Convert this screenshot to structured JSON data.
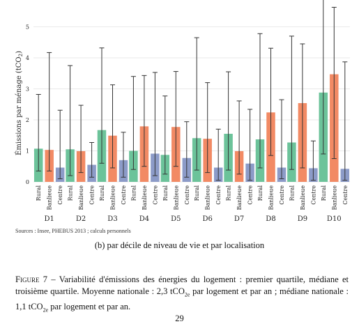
{
  "colors": {
    "Rural": "#6cc39a",
    "Banlieue": "#f28a64",
    "Centre": "#8c9bc8"
  },
  "chart_data": {
    "type": "bar",
    "ylabel": "Émissions par ménage (tCO2)",
    "ylim": [
      0,
      5.7
    ],
    "yticks": [
      0,
      1,
      2,
      3,
      4,
      5
    ],
    "grid": true,
    "categories": [
      "D1",
      "D2",
      "D3",
      "D4",
      "D5",
      "D6",
      "D7",
      "D8",
      "D9",
      "D10"
    ],
    "subcategories": [
      "Rural",
      "Banlieue",
      "Centre"
    ],
    "series": [
      {
        "name": "Rural",
        "median": [
          1.07,
          1.05,
          1.67,
          1.0,
          0.87,
          1.41,
          1.55,
          1.37,
          1.27,
          2.88
        ],
        "q1": [
          0.35,
          0.2,
          0.6,
          0.4,
          0.25,
          0.38,
          0.38,
          0.45,
          0.4,
          0.9
        ],
        "q3": [
          2.82,
          3.75,
          4.32,
          3.4,
          2.77,
          4.65,
          3.55,
          4.78,
          4.7,
          5.95
        ]
      },
      {
        "name": "Banlieue",
        "median": [
          1.03,
          0.99,
          1.49,
          1.79,
          1.77,
          1.39,
          0.99,
          2.24,
          2.54,
          3.47
        ],
        "q1": [
          0.35,
          0.3,
          0.45,
          0.5,
          0.5,
          0.3,
          0.25,
          0.85,
          0.45,
          0.75
        ],
        "q3": [
          4.17,
          2.47,
          3.13,
          3.43,
          3.56,
          3.2,
          2.61,
          4.31,
          4.45,
          5.63
        ]
      },
      {
        "name": "Centre",
        "median": [
          0.46,
          0.55,
          0.7,
          0.91,
          0.77,
          0.46,
          0.59,
          0.46,
          0.44,
          0.42
        ],
        "q1": [
          0.1,
          0.15,
          0.15,
          0.2,
          0.15,
          0.05,
          0.05,
          0.1,
          0.05,
          0.05
        ],
        "q3": [
          2.31,
          1.27,
          1.6,
          3.53,
          1.94,
          1.7,
          2.34,
          2.65,
          1.32,
          3.87
        ]
      }
    ]
  },
  "sources": "Sources : Insee, PHEBUS 2013 ; calculs personnels",
  "subcaption": "(b) par décile de niveau de vie et par localisation",
  "caption": {
    "label": "Figure 7",
    "line1": " – Variabilité d'émissions des énergies du logement : premier quartile, médiane et troisième quartile. Moyenne nationale : 2,3 tCO",
    "sub1": "2e",
    "mid": " par logement et par an ; médiane nationale : 1,1 tCO",
    "sub2": "2e",
    "end": " par logement et par an."
  },
  "page_number": "29"
}
